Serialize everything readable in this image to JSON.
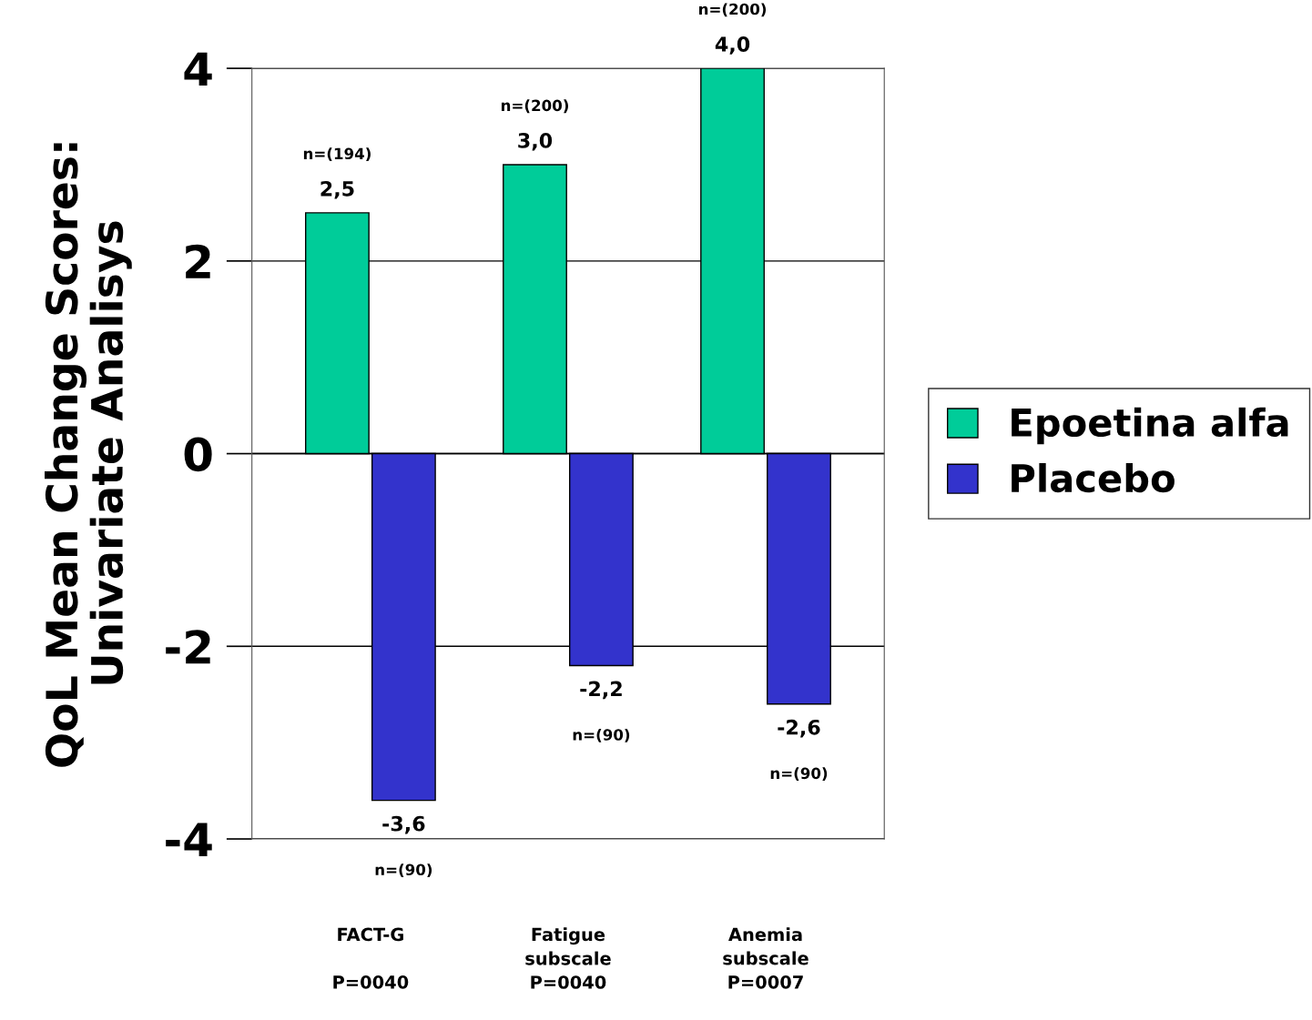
{
  "chart_data": {
    "type": "bar",
    "ylabel": "QoL Mean Change Scores:\nUnivariate Analisys",
    "categories": [
      "FACT-G\n\nP=0040",
      "Fatigue\nsubscale\nP=0040",
      "Anemia\nsubscale\nP=0007"
    ],
    "series": [
      {
        "name": "Epoetina alfa",
        "color": "#00cc99",
        "values": [
          2.5,
          3.0,
          4.0
        ],
        "value_labels": [
          "2,5",
          "3,0",
          "4,0"
        ]
      },
      {
        "name": "Placebo",
        "color": "#3333cc",
        "values": [
          -3.6,
          -2.2,
          -2.6
        ],
        "value_labels": [
          "-3,6",
          "-2,2",
          "-2,6"
        ]
      }
    ],
    "annotations": [
      "n=(194)",
      "n=(200)",
      "n=(200)",
      "n=(90)",
      "n=(90)",
      "n=(90)"
    ],
    "ylim": [
      -4,
      4
    ],
    "yticks": [
      -4,
      -2,
      0,
      2,
      4
    ],
    "grid": "y",
    "legend": "right"
  }
}
